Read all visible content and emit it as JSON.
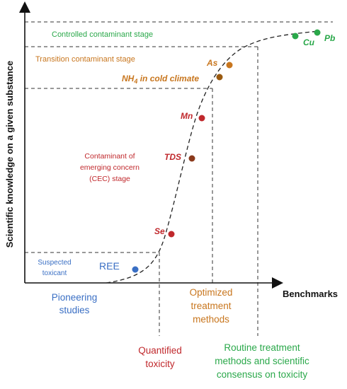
{
  "axes": {
    "y_label": "Scientific knowledge on a given substance",
    "x_label": "Benchmarks"
  },
  "stages": {
    "controlled": "Controlled contaminant stage",
    "transition": "Transition contaminant stage",
    "cec_line1": "Contaminant of",
    "cec_line2": "emerging concern",
    "cec_line3": "(CEC) stage",
    "suspected_line1": "Suspected",
    "suspected_line2": "toxicant"
  },
  "benchmarks": {
    "pioneering_line1": "Pioneering",
    "pioneering_line2": "studies",
    "optimized_line1": "Optimized",
    "optimized_line2": "treatment",
    "optimized_line3": "methods",
    "quantified_line1": "Quantified",
    "quantified_line2": "toxicity",
    "routine_line1": "Routine treatment",
    "routine_line2": "methods and scientific",
    "routine_line3": "consensus on toxicity"
  },
  "substances": {
    "ree": "REE",
    "se": "Se",
    "tds": "TDS",
    "mn": "Mn",
    "nh4_main": "NH",
    "nh4_sub": "4",
    "nh4_rest": " in cold climate",
    "as": "As",
    "cu": "Cu",
    "pb": "Pb"
  },
  "colors": {
    "blue": "#3a6fc4",
    "red": "#c0282c",
    "orange": "#c8761e",
    "green": "#2aa84a",
    "axis": "#111111",
    "dash": "#333333"
  }
}
